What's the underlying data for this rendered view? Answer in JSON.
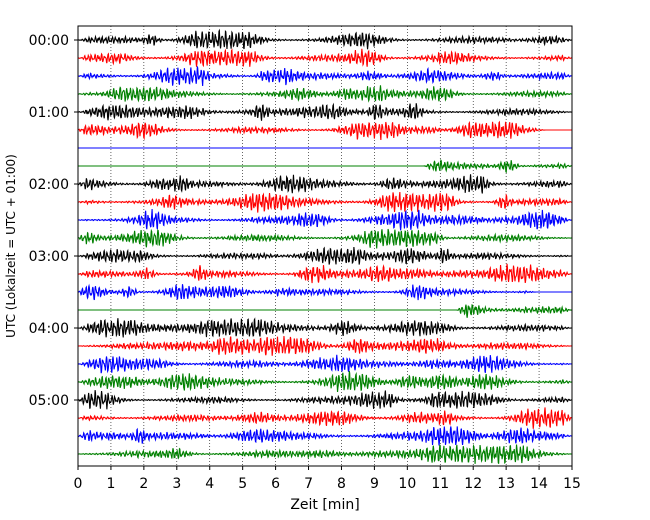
{
  "chart_data": {
    "type": "line",
    "title": "",
    "xlabel": "Zeit  [min]",
    "ylabel": "UTC (Lokalzeit = UTC + 01:00)",
    "xlim": [
      0,
      15
    ],
    "x_ticks": [
      "0",
      "1",
      "2",
      "3",
      "4",
      "5",
      "6",
      "7",
      "8",
      "9",
      "10",
      "11",
      "12",
      "13",
      "14",
      "15"
    ],
    "x_grid": "dotted",
    "y_ticks": [
      "00:00",
      "01:00",
      "02:00",
      "03:00",
      "04:00",
      "05:00"
    ],
    "rows_per_hour": 4,
    "trace_colors": [
      "#000000",
      "#ff0000",
      "#0000ff",
      "#008000"
    ],
    "traces": [
      {
        "start": "00:00",
        "color": "#000000",
        "amplitude": 0.3,
        "signal": [
          0,
          15
        ]
      },
      {
        "start": "00:15",
        "color": "#ff0000",
        "amplitude": 0.28,
        "signal": [
          0,
          15
        ]
      },
      {
        "start": "00:30",
        "color": "#0000ff",
        "amplitude": 0.3,
        "signal": [
          0,
          15
        ]
      },
      {
        "start": "00:45",
        "color": "#008000",
        "amplitude": 0.26,
        "signal": [
          0,
          15
        ]
      },
      {
        "start": "01:00",
        "color": "#000000",
        "amplitude": 0.3,
        "signal": [
          0,
          15
        ]
      },
      {
        "start": "01:15",
        "color": "#ff0000",
        "amplitude": 0.28,
        "signal": [
          0,
          14.2
        ]
      },
      {
        "start": "01:30",
        "color": "#0000ff",
        "amplitude": 0.0,
        "signal": []
      },
      {
        "start": "01:45",
        "color": "#008000",
        "amplitude": 0.28,
        "signal": [
          10.5,
          15
        ]
      },
      {
        "start": "02:00",
        "color": "#000000",
        "amplitude": 0.3,
        "signal": [
          0,
          15
        ]
      },
      {
        "start": "02:15",
        "color": "#ff0000",
        "amplitude": 0.32,
        "signal": [
          0,
          15
        ]
      },
      {
        "start": "02:30",
        "color": "#0000ff",
        "amplitude": 0.32,
        "signal": [
          0,
          15
        ]
      },
      {
        "start": "02:45",
        "color": "#008000",
        "amplitude": 0.3,
        "signal": [
          0,
          15
        ]
      },
      {
        "start": "03:00",
        "color": "#000000",
        "amplitude": 0.28,
        "signal": [
          0,
          15
        ]
      },
      {
        "start": "03:15",
        "color": "#ff0000",
        "amplitude": 0.3,
        "signal": [
          0,
          15
        ]
      },
      {
        "start": "03:30",
        "color": "#0000ff",
        "amplitude": 0.28,
        "signal": [
          0,
          13.9
        ]
      },
      {
        "start": "03:45",
        "color": "#008000",
        "amplitude": 0.3,
        "signal": [
          11.5,
          15
        ]
      },
      {
        "start": "04:00",
        "color": "#000000",
        "amplitude": 0.3,
        "signal": [
          0,
          15
        ]
      },
      {
        "start": "04:15",
        "color": "#ff0000",
        "amplitude": 0.3,
        "signal": [
          0,
          15
        ]
      },
      {
        "start": "04:30",
        "color": "#0000ff",
        "amplitude": 0.3,
        "signal": [
          0,
          15
        ]
      },
      {
        "start": "04:45",
        "color": "#008000",
        "amplitude": 0.32,
        "signal": [
          0,
          15
        ]
      },
      {
        "start": "05:00",
        "color": "#000000",
        "amplitude": 0.28,
        "signal": [
          0,
          15
        ]
      },
      {
        "start": "05:15",
        "color": "#ff0000",
        "amplitude": 0.3,
        "signal": [
          0,
          15
        ]
      },
      {
        "start": "05:30",
        "color": "#0000ff",
        "amplitude": 0.32,
        "signal": [
          0,
          15
        ]
      },
      {
        "start": "05:45",
        "color": "#008000",
        "amplitude": 0.3,
        "signal": [
          0,
          15
        ]
      }
    ]
  }
}
